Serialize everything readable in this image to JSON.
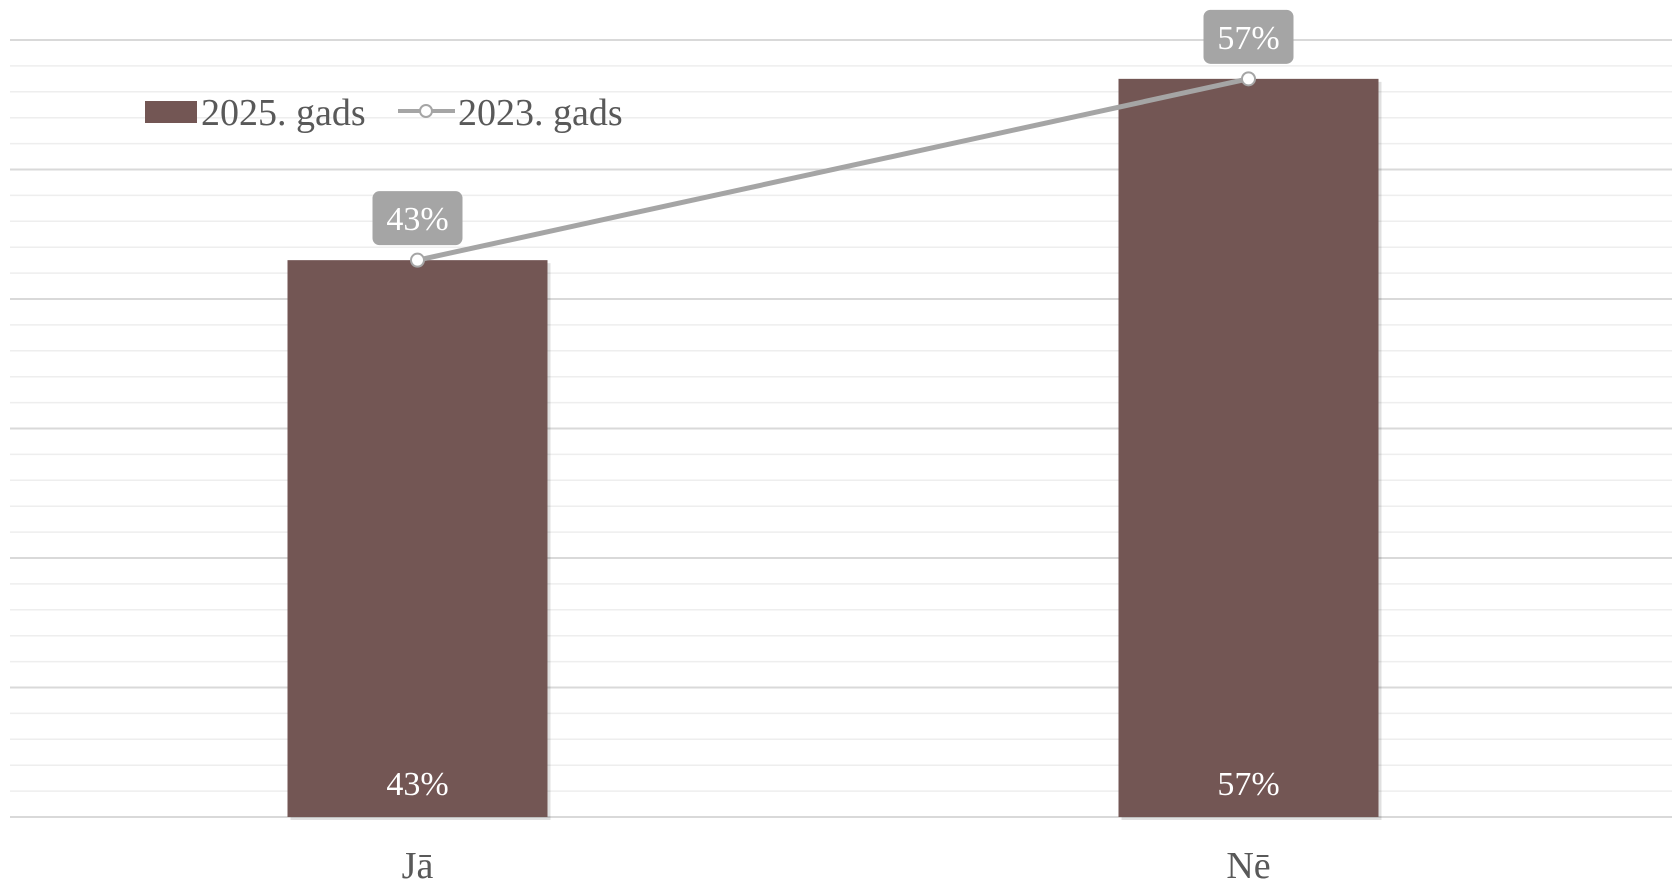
{
  "chart_data": {
    "type": "bar",
    "categories": [
      "Jā",
      "Nē"
    ],
    "series": [
      {
        "name": "2025. gads",
        "kind": "bar",
        "values": [
          43,
          57
        ],
        "labels": [
          "43%",
          "57%"
        ],
        "color": "#735654"
      },
      {
        "name": "2023. gads",
        "kind": "line",
        "values": [
          43,
          57
        ],
        "labels": [
          "43%",
          "57%"
        ],
        "color": "#A5A5A5"
      }
    ],
    "ylim": [
      0,
      60
    ],
    "unit": "%",
    "grid": true,
    "legend": "top-left",
    "colors": {
      "grid_major": "#D9D9D9",
      "grid_minor": "#EEEEEE",
      "text": "#595959",
      "label_box": "#A5A5A5"
    }
  }
}
